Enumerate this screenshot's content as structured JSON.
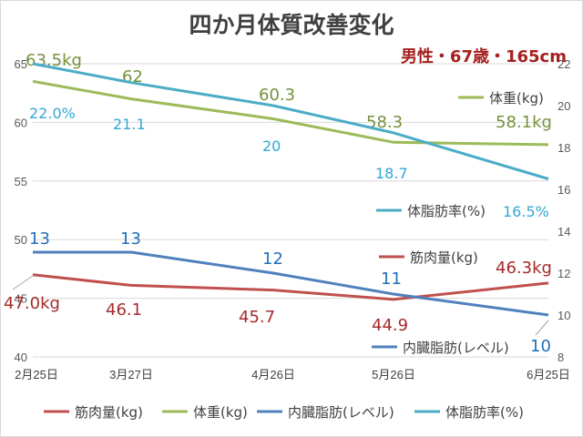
{
  "chart_data": {
    "type": "line",
    "title": "四か月体質改善変化",
    "note": "男性・67歳・165cm",
    "categories": [
      "2月25日",
      "3月27日",
      "4月26日",
      "5月26日",
      "6月25日"
    ],
    "left_axis": {
      "min": 40,
      "max": 65,
      "ticks": [
        "40",
        "45",
        "50",
        "55",
        "60",
        "65"
      ]
    },
    "right_axis": {
      "min": 8,
      "max": 22,
      "ticks": [
        "8",
        "10",
        "12",
        "14",
        "16",
        "18",
        "20",
        "22"
      ]
    },
    "grid": true,
    "legend_position": "bottom",
    "series": [
      {
        "name": "筋肉量(kg)",
        "axis": "left",
        "color": "#C0504D",
        "label_color": "#A52A2A",
        "values": [
          47.0,
          46.1,
          45.7,
          44.9,
          46.3
        ],
        "data_labels": [
          "47.0kg",
          "46.1",
          "45.7",
          "44.9",
          "46.3kg"
        ]
      },
      {
        "name": "体重(kg)",
        "axis": "left",
        "color": "#9BBB59",
        "label_color": "#76923C",
        "values": [
          63.5,
          62.0,
          60.3,
          58.3,
          58.1
        ],
        "data_labels": [
          "63.5kg",
          "62",
          "60.3",
          "58.3",
          "58.1kg"
        ]
      },
      {
        "name": "内臓脂肪(レベル)",
        "axis": "right",
        "color": "#4F81BD",
        "label_color": "#1F6FB8",
        "values": [
          13,
          13,
          12,
          11,
          10
        ],
        "data_labels": [
          "13",
          "13",
          "12",
          "11",
          "10"
        ]
      },
      {
        "name": "体脂肪率(%)",
        "axis": "right",
        "color": "#4BACC6",
        "label_color": "#31A8D4",
        "values": [
          22.0,
          21.1,
          20.0,
          18.7,
          16.5
        ],
        "data_labels": [
          "22.0%",
          "21.1",
          "20",
          "18.7",
          "16.5%"
        ]
      }
    ],
    "inline_legends": [
      {
        "series": 1,
        "text": "体重(kg)"
      },
      {
        "series": 3,
        "text": "体脂肪率(%)"
      },
      {
        "series": 0,
        "text": "筋肉量(kg)"
      },
      {
        "series": 2,
        "text": "内臓脂肪(レベル)"
      }
    ]
  }
}
